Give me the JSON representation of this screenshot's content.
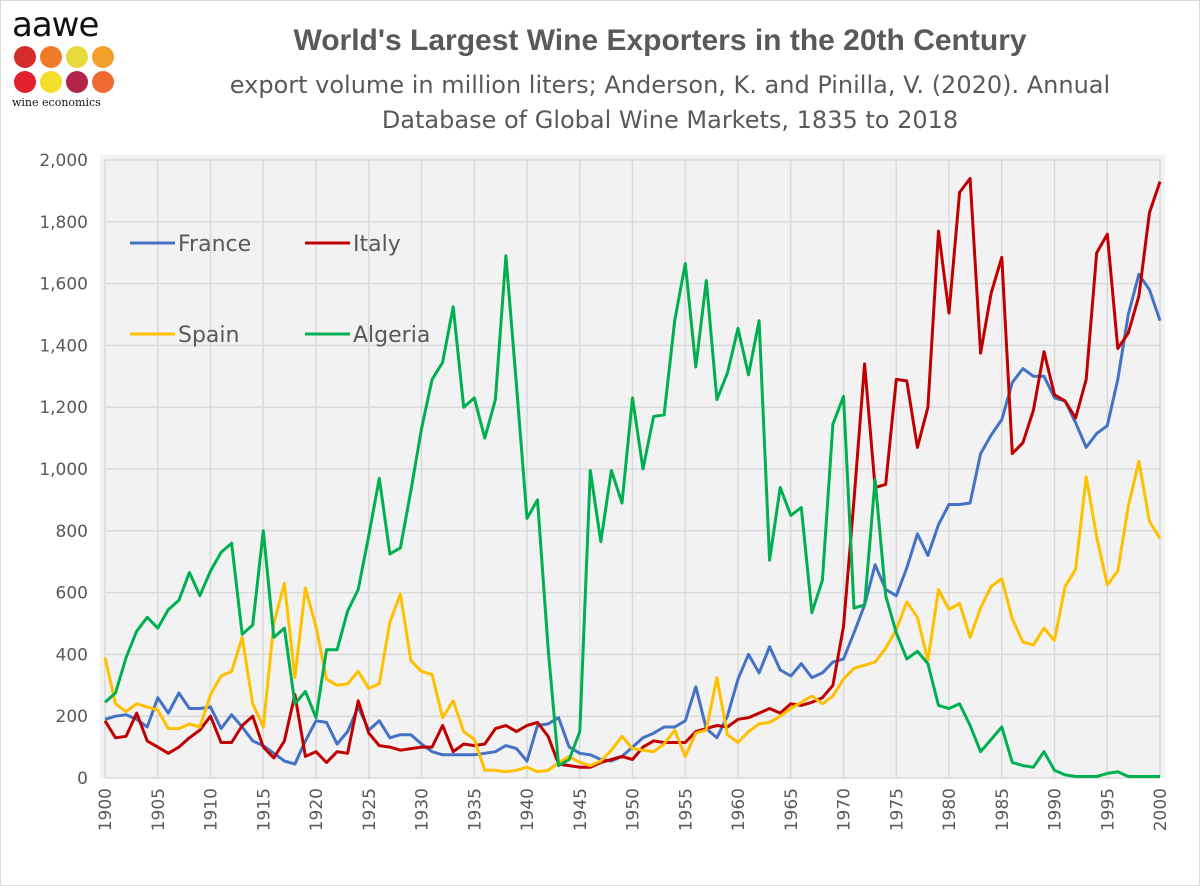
{
  "logo": {
    "word": "aawe",
    "tagline": "wine economics",
    "dot_colors": [
      "#d62b2b",
      "#f07a2a",
      "#e7d93a",
      "#f2a02c",
      "#e3202e",
      "#f4de2a",
      "#b3244a",
      "#ef6a33"
    ]
  },
  "header": {
    "title": "World's Largest Wine Exporters in the 20th Century",
    "subtitle_line1": "export volume in million liters; Anderson, K. and Pinilla, V. (2020). Annual",
    "subtitle_line2": "Database of Global Wine Markets, 1835 to 2018"
  },
  "chart_data": {
    "type": "line",
    "title": "World's Largest Wine Exporters in the 20th Century",
    "subtitle": "export volume in million liters; Anderson, K. and Pinilla, V. (2020). Annual Database of Global Wine Markets, 1835 to 2018",
    "xlabel": "",
    "ylabel": "",
    "xlim": [
      1900,
      2000
    ],
    "ylim": [
      0,
      2000
    ],
    "x_ticks": [
      "1900",
      "1905",
      "1910",
      "1915",
      "1920",
      "1925",
      "1930",
      "1935",
      "1940",
      "1945",
      "1950",
      "1955",
      "1960",
      "1965",
      "1970",
      "1975",
      "1980",
      "1985",
      "1990",
      "1995",
      "2000"
    ],
    "y_ticks": [
      "0",
      "200",
      "400",
      "600",
      "800",
      "1,000",
      "1,200",
      "1,400",
      "1,600",
      "1,800",
      "2,000"
    ],
    "grid": true,
    "legend_placement": "top-left",
    "x_start": 1900,
    "series": [
      {
        "name": "France",
        "color": "#4472c4",
        "values": [
          190,
          200,
          205,
          190,
          165,
          260,
          210,
          275,
          225,
          225,
          230,
          160,
          205,
          165,
          120,
          105,
          80,
          55,
          45,
          120,
          185,
          180,
          110,
          150,
          230,
          155,
          185,
          130,
          140,
          140,
          110,
          85,
          75,
          75,
          75,
          75,
          80,
          85,
          105,
          95,
          55,
          170,
          175,
          195,
          100,
          80,
          75,
          60,
          55,
          70,
          100,
          130,
          145,
          165,
          165,
          185,
          295,
          160,
          130,
          200,
          320,
          400,
          340,
          425,
          350,
          330,
          370,
          325,
          340,
          375,
          385,
          470,
          560,
          690,
          610,
          590,
          680,
          790,
          720,
          820,
          885,
          885,
          890,
          1050,
          1110,
          1160,
          1280,
          1325,
          1300,
          1300,
          1230,
          1220,
          1150,
          1070,
          1115,
          1140,
          1290,
          1500,
          1630,
          1580,
          1480
        ]
      },
      {
        "name": "Italy",
        "color": "#c00000",
        "values": [
          185,
          130,
          135,
          210,
          120,
          100,
          80,
          100,
          130,
          155,
          200,
          115,
          115,
          170,
          200,
          100,
          65,
          120,
          270,
          70,
          85,
          50,
          85,
          80,
          250,
          145,
          105,
          100,
          90,
          95,
          100,
          100,
          170,
          85,
          110,
          105,
          110,
          160,
          170,
          150,
          170,
          180,
          135,
          45,
          40,
          35,
          35,
          50,
          60,
          70,
          60,
          100,
          120,
          115,
          115,
          115,
          150,
          160,
          170,
          165,
          190,
          195,
          210,
          225,
          210,
          240,
          235,
          245,
          260,
          300,
          490,
          900,
          1340,
          940,
          950,
          1290,
          1285,
          1070,
          1200,
          1770,
          1505,
          1895,
          1940,
          1375,
          1570,
          1685,
          1050,
          1085,
          1190,
          1380,
          1240,
          1220,
          1165,
          1290,
          1700,
          1760,
          1390,
          1440,
          1560,
          1830,
          1930
        ]
      },
      {
        "name": "Spain",
        "color": "#ffc000",
        "values": [
          390,
          240,
          215,
          240,
          230,
          220,
          160,
          160,
          175,
          165,
          270,
          330,
          345,
          455,
          240,
          165,
          500,
          630,
          325,
          615,
          490,
          320,
          300,
          305,
          345,
          290,
          305,
          505,
          595,
          380,
          345,
          335,
          195,
          250,
          150,
          125,
          25,
          25,
          20,
          25,
          35,
          20,
          25,
          50,
          70,
          50,
          40,
          55,
          90,
          135,
          95,
          90,
          85,
          110,
          155,
          70,
          145,
          155,
          325,
          140,
          115,
          150,
          175,
          180,
          200,
          225,
          245,
          265,
          240,
          265,
          320,
          355,
          365,
          375,
          420,
          480,
          570,
          520,
          380,
          610,
          545,
          565,
          455,
          550,
          620,
          645,
          515,
          440,
          430,
          485,
          445,
          620,
          675,
          975,
          780,
          625,
          670,
          880,
          1025,
          830,
          775
        ]
      },
      {
        "name": "Algeria",
        "color": "#00b050",
        "values": [
          245,
          275,
          390,
          475,
          520,
          485,
          545,
          575,
          665,
          590,
          670,
          730,
          760,
          465,
          495,
          800,
          455,
          485,
          240,
          280,
          195,
          415,
          415,
          540,
          610,
          785,
          970,
          725,
          745,
          930,
          1130,
          1290,
          1345,
          1525,
          1200,
          1230,
          1100,
          1225,
          1690,
          1270,
          840,
          900,
          420,
          40,
          60,
          150,
          995,
          765,
          995,
          890,
          1230,
          1000,
          1170,
          1175,
          1480,
          1665,
          1330,
          1610,
          1225,
          1310,
          1455,
          1305,
          1480,
          705,
          940,
          850,
          875,
          535,
          640,
          1145,
          1235,
          550,
          560,
          965,
          590,
          470,
          385,
          410,
          370,
          235,
          225,
          240,
          170,
          85,
          125,
          165,
          50,
          40,
          35,
          85,
          25,
          10,
          5,
          5,
          5,
          15,
          20,
          5,
          5,
          5,
          5
        ]
      }
    ]
  }
}
